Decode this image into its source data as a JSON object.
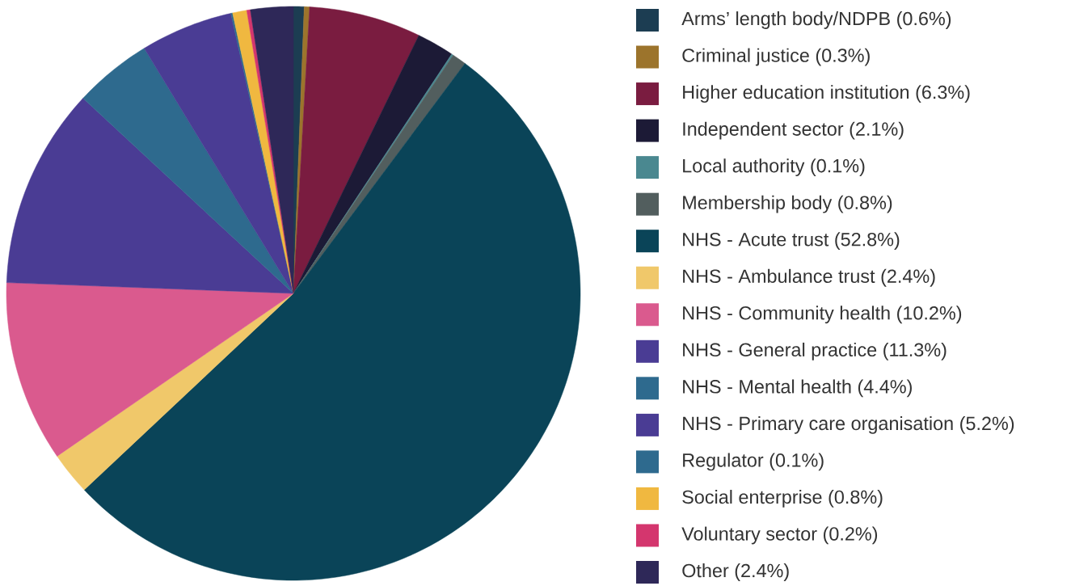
{
  "chart_data": {
    "type": "pie",
    "legend": "right",
    "categories": [
      "Arms’ length body/NDPB (0.6%)",
      "Criminal justice (0.3%)",
      "Higher education institution (6.3%)",
      "Independent sector (2.1%)",
      "Local authority (0.1%)",
      "Membership body (0.8%)",
      "NHS - Acute trust (52.8%)",
      "NHS - Ambulance trust (2.4%)",
      "NHS - Community health (10.2%)",
      "NHS - General practice (11.3%)",
      "NHS - Mental health (4.4%)",
      "NHS - Primary care organisation (5.2%)",
      "Regulator (0.1%)",
      "Social enterprise (0.8%)",
      "Voluntary sector (0.2%)",
      "Other (2.4%)"
    ],
    "values": [
      0.6,
      0.3,
      6.3,
      2.1,
      0.1,
      0.8,
      52.8,
      2.4,
      10.2,
      11.3,
      4.4,
      5.2,
      0.1,
      0.8,
      0.2,
      2.4
    ],
    "colors": [
      "#1c3d52",
      "#9c742c",
      "#7a1c40",
      "#1c1a36",
      "#4a8890",
      "#525e5e",
      "#0a4458",
      "#f0c86a",
      "#da5a8e",
      "#4a3c94",
      "#2e6a8e",
      "#4a3c94",
      "#2e6a8e",
      "#f0b840",
      "#d4366e",
      "#2e2858"
    ]
  }
}
